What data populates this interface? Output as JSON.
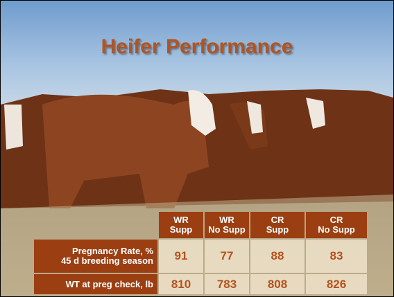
{
  "header": {
    "title": "Heifer Performance"
  },
  "table": {
    "columns": [
      [
        "WR",
        "Supp"
      ],
      [
        "WR",
        "No Supp"
      ],
      [
        "CR",
        "Supp"
      ],
      [
        "CR",
        "No Supp"
      ]
    ],
    "rows": [
      {
        "label": [
          "Pregnancy Rate, %",
          "45 d breeding season"
        ],
        "values": [
          91,
          77,
          88,
          83
        ]
      },
      {
        "label": [
          "WT at preg check, lb"
        ],
        "values": [
          810,
          783,
          808,
          826
        ]
      }
    ]
  }
}
